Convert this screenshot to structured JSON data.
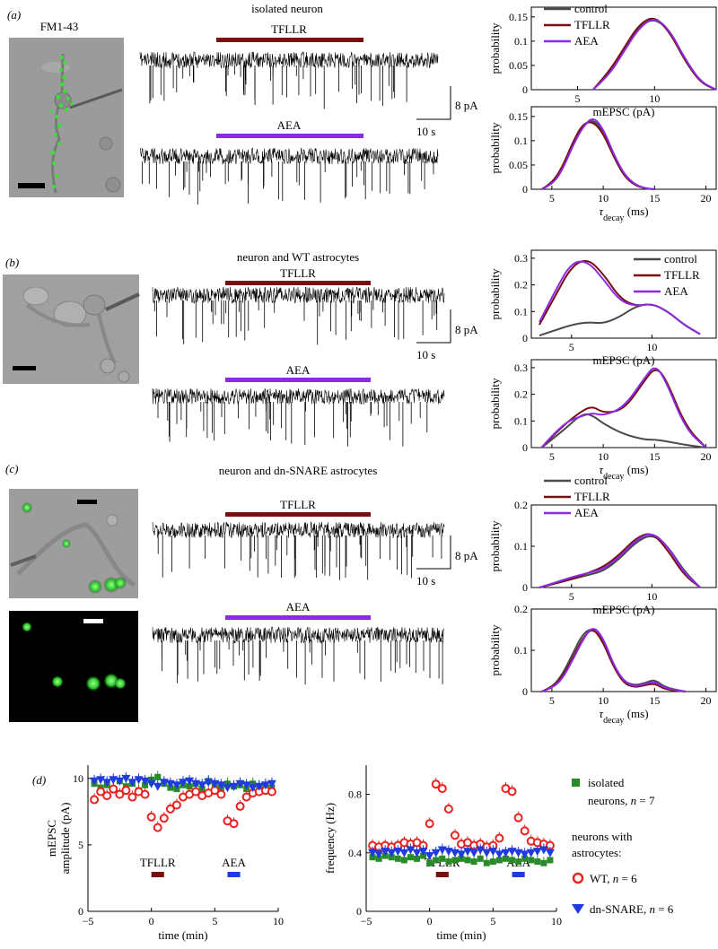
{
  "palette": {
    "control": "#4a4a4a",
    "tfllr": "#7a0f12",
    "aea": "#8a2be2",
    "wt": "#e8231f",
    "dn": "#1f3be0",
    "iso": "#2a8a2a",
    "trace": "#000000"
  },
  "panels": [
    {
      "label": "(a)",
      "title": "isolated neuron",
      "image_label": "FM1-43",
      "bars": [
        "TFLLR",
        "AEA"
      ],
      "scale": {
        "amp": "8 pA",
        "time": "10 s"
      },
      "legend": [
        "control",
        "TFLLR",
        "AEA"
      ],
      "amp_chart": {
        "type": "line",
        "xlabel": "mEPSC (pA)",
        "ylabel": "probability",
        "xlim": [
          2,
          14
        ],
        "ylim": [
          0,
          0.17
        ],
        "xticks": [
          5,
          10
        ],
        "yticks": [
          0,
          0.05,
          0.1,
          0.15
        ],
        "x": [
          6,
          7,
          8,
          9,
          10,
          11,
          12,
          13,
          14
        ],
        "series": [
          {
            "name": "control",
            "values": [
              0.0,
              0.03,
              0.08,
              0.13,
              0.148,
              0.12,
              0.06,
              0.015,
              0.0
            ]
          },
          {
            "name": "TFLLR",
            "values": [
              0.0,
              0.035,
              0.085,
              0.135,
              0.152,
              0.118,
              0.058,
              0.014,
              0.0
            ]
          },
          {
            "name": "AEA",
            "values": [
              0.0,
              0.028,
              0.078,
              0.128,
              0.15,
              0.122,
              0.062,
              0.016,
              0.0
            ]
          }
        ]
      },
      "tau_chart": {
        "type": "line",
        "xlabel_main": "τ",
        "xlabel_sub": "decay",
        "xlabel_unit": " (ms)",
        "ylabel": "probability",
        "xlim": [
          3,
          21
        ],
        "ylim": [
          0,
          0.17
        ],
        "xticks": [
          5,
          10,
          15,
          20
        ],
        "yticks": [
          0,
          0.05,
          0.1,
          0.15
        ],
        "x": [
          4,
          5,
          6,
          7,
          8,
          9,
          10,
          11,
          12,
          13,
          14,
          15
        ],
        "series": [
          {
            "name": "control",
            "values": [
              0.0,
              0.01,
              0.04,
              0.09,
              0.13,
              0.145,
              0.12,
              0.07,
              0.03,
              0.01,
              0.002,
              0.0
            ]
          },
          {
            "name": "TFLLR",
            "values": [
              0.0,
              0.012,
              0.045,
              0.095,
              0.135,
              0.14,
              0.115,
              0.068,
              0.028,
              0.009,
              0.002,
              0.0
            ]
          },
          {
            "name": "AEA",
            "values": [
              0.0,
              0.009,
              0.038,
              0.088,
              0.128,
              0.15,
              0.125,
              0.073,
              0.032,
              0.011,
              0.002,
              0.0
            ]
          }
        ]
      }
    },
    {
      "label": "(b)",
      "title": "neuron and WT astrocytes",
      "image_label": "",
      "bars": [
        "TFLLR",
        "AEA"
      ],
      "scale": {
        "amp": "8 pA",
        "time": "10 s"
      },
      "legend": [
        "control",
        "TFLLR",
        "AEA"
      ],
      "amp_chart": {
        "type": "line",
        "xlabel": "mEPSC (pA)",
        "ylabel": "probability",
        "xlim": [
          2.5,
          14
        ],
        "ylim": [
          0,
          0.33
        ],
        "xticks": [
          5,
          10
        ],
        "yticks": [
          0,
          0.1,
          0.2,
          0.3
        ],
        "x": [
          3,
          4,
          5,
          6,
          7,
          8,
          9,
          10,
          11,
          12,
          13
        ],
        "series": [
          {
            "name": "control",
            "values": [
              0.01,
              0.03,
              0.05,
              0.06,
              0.055,
              0.08,
              0.12,
              0.13,
              0.1,
              0.05,
              0.015
            ]
          },
          {
            "name": "TFLLR",
            "values": [
              0.05,
              0.16,
              0.27,
              0.3,
              0.24,
              0.15,
              0.12,
              0.13,
              0.1,
              0.05,
              0.015
            ]
          },
          {
            "name": "AEA",
            "values": [
              0.06,
              0.18,
              0.285,
              0.29,
              0.22,
              0.14,
              0.12,
              0.13,
              0.1,
              0.05,
              0.015
            ]
          }
        ]
      },
      "tau_chart": {
        "type": "line",
        "xlabel_main": "τ",
        "xlabel_sub": "decay",
        "xlabel_unit": " (ms)",
        "ylabel": "probability",
        "xlim": [
          3,
          21
        ],
        "ylim": [
          0,
          0.33
        ],
        "xticks": [
          5,
          10,
          15,
          20
        ],
        "yticks": [
          0,
          0.1,
          0.2,
          0.3
        ],
        "x": [
          4,
          6,
          8,
          9,
          10,
          12,
          14,
          15,
          16,
          18,
          20
        ],
        "series": [
          {
            "name": "control",
            "values": [
              0.0,
              0.06,
              0.13,
              0.12,
              0.09,
              0.05,
              0.03,
              0.03,
              0.025,
              0.01,
              0.0
            ]
          },
          {
            "name": "TFLLR",
            "values": [
              0.0,
              0.08,
              0.14,
              0.155,
              0.13,
              0.14,
              0.25,
              0.3,
              0.27,
              0.08,
              0.0
            ]
          },
          {
            "name": "AEA",
            "values": [
              0.0,
              0.09,
              0.12,
              0.13,
              0.12,
              0.15,
              0.26,
              0.31,
              0.26,
              0.07,
              0.0
            ]
          }
        ]
      }
    },
    {
      "label": "(c)",
      "title": "neuron and dn-SNARE  astrocytes",
      "image_label": "",
      "bars": [
        "TFLLR",
        "AEA"
      ],
      "scale": {
        "amp": "8 pA",
        "time": "10 s"
      },
      "legend": [
        "control",
        "TFLLR",
        "AEA"
      ],
      "amp_chart": {
        "type": "line",
        "xlabel": "mEPSC (pA)",
        "ylabel": "probability",
        "xlim": [
          2.5,
          14
        ],
        "ylim": [
          0,
          0.2
        ],
        "xticks": [
          5,
          10
        ],
        "yticks": [
          0,
          0.1,
          0.2
        ],
        "x": [
          3,
          4,
          5,
          6,
          7,
          8,
          9,
          10,
          11,
          12,
          13
        ],
        "series": [
          {
            "name": "control",
            "values": [
              0.0,
              0.01,
              0.02,
              0.03,
              0.04,
              0.07,
              0.11,
              0.13,
              0.1,
              0.04,
              0.0
            ]
          },
          {
            "name": "TFLLR",
            "values": [
              0.0,
              0.01,
              0.02,
              0.035,
              0.05,
              0.08,
              0.12,
              0.135,
              0.09,
              0.03,
              0.0
            ]
          },
          {
            "name": "AEA",
            "values": [
              0.0,
              0.012,
              0.025,
              0.035,
              0.045,
              0.075,
              0.115,
              0.135,
              0.1,
              0.035,
              0.0
            ]
          }
        ]
      },
      "tau_chart": {
        "type": "line",
        "xlabel_main": "τ",
        "xlabel_sub": "decay",
        "xlabel_unit": " (ms)",
        "ylabel": "probability",
        "xlim": [
          3,
          21
        ],
        "ylim": [
          0,
          0.2
        ],
        "xticks": [
          5,
          10,
          15,
          20
        ],
        "yticks": [
          0,
          0.1,
          0.2
        ],
        "x": [
          4,
          5,
          6,
          7,
          8,
          9,
          10,
          11,
          12,
          13,
          14,
          15,
          16,
          18
        ],
        "series": [
          {
            "name": "control",
            "values": [
              0.0,
              0.01,
              0.04,
              0.09,
              0.14,
              0.155,
              0.12,
              0.06,
              0.025,
              0.015,
              0.02,
              0.03,
              0.01,
              0.0
            ]
          },
          {
            "name": "TFLLR",
            "values": [
              0.0,
              0.01,
              0.035,
              0.08,
              0.13,
              0.155,
              0.12,
              0.06,
              0.02,
              0.01,
              0.015,
              0.02,
              0.005,
              0.0
            ]
          },
          {
            "name": "AEA",
            "values": [
              0.0,
              0.008,
              0.03,
              0.075,
              0.125,
              0.16,
              0.13,
              0.065,
              0.025,
              0.012,
              0.018,
              0.025,
              0.008,
              0.0
            ]
          }
        ]
      }
    }
  ],
  "panel_d": {
    "label": "(d)",
    "bar_labels": [
      "TFLLR",
      "AEA"
    ],
    "legend": {
      "iso": "isolated",
      "iso_n_prefix": "neurons, ",
      "n": "n",
      "iso_n": " = 7",
      "with": "neurons with",
      "with2": "astrocytes:",
      "wt": "WT, ",
      "wt_n": " = 6",
      "dn": "dn-SNARE, ",
      "dn_n": " = 6"
    },
    "amp_chart": {
      "type": "scatter",
      "xlabel": "time (min)",
      "ylabel": "mEPSC\namplitude (pA)",
      "xlim": [
        -5,
        10
      ],
      "ylim": [
        0,
        11
      ],
      "xticks": [
        -5,
        0,
        5,
        10
      ],
      "yticks": [
        0,
        5,
        10
      ],
      "x": [
        -4.5,
        -4,
        -3.5,
        -3,
        -2.5,
        -2,
        -1.5,
        -1,
        -0.5,
        0,
        0.5,
        1,
        1.5,
        2,
        2.5,
        3,
        3.5,
        4,
        4.5,
        5,
        5.5,
        6,
        6.5,
        7,
        7.5,
        8,
        8.5,
        9,
        9.5
      ],
      "series": [
        {
          "name": "isolated neurons",
          "values": [
            9.6,
            9.3,
            9.5,
            9.2,
            9.8,
            9.4,
            9.6,
            9.1,
            9.5,
            9.9,
            10.1,
            9.6,
            9.3,
            9.2,
            9.5,
            9.4,
            9.6,
            9.2,
            9.8,
            9.5,
            9.3,
            9.6,
            9.4,
            9.5,
            9.2,
            9.6,
            9.4,
            9.5,
            9.3
          ]
        },
        {
          "name": "WT",
          "values": [
            8.4,
            9.0,
            8.7,
            9.2,
            8.8,
            9.1,
            8.6,
            9.0,
            8.8,
            7.1,
            6.3,
            7.0,
            7.7,
            8.0,
            8.6,
            8.8,
            9.0,
            8.7,
            8.9,
            9.1,
            8.8,
            6.8,
            6.6,
            7.9,
            8.6,
            8.9,
            9.0,
            9.1,
            9.0
          ]
        },
        {
          "name": "dn-SNARE",
          "values": [
            9.8,
            9.9,
            9.7,
            9.9,
            9.8,
            10.0,
            9.7,
            9.9,
            9.8,
            9.6,
            9.4,
            9.7,
            9.6,
            9.5,
            9.7,
            9.8,
            9.6,
            9.5,
            9.7,
            9.6,
            9.5,
            9.3,
            9.4,
            9.6,
            9.5,
            9.3,
            9.4,
            9.5,
            9.6
          ]
        }
      ],
      "bars": [
        {
          "label": "TFLLR",
          "start": 0,
          "end": 1
        },
        {
          "label": "AEA",
          "start": 6,
          "end": 7
        }
      ]
    },
    "freq_chart": {
      "type": "scatter",
      "xlabel": "time (min)",
      "ylabel": "frequency (Hz)",
      "xlim": [
        -5,
        10
      ],
      "ylim": [
        0,
        1.0
      ],
      "xticks": [
        -5,
        0,
        5,
        10
      ],
      "yticks": [
        0,
        0.4,
        0.8
      ],
      "x": [
        -4.5,
        -4,
        -3.5,
        -3,
        -2.5,
        -2,
        -1.5,
        -1,
        -0.5,
        0,
        0.5,
        1,
        1.5,
        2,
        2.5,
        3,
        3.5,
        4,
        4.5,
        5,
        5.5,
        6,
        6.5,
        7,
        7.5,
        8,
        8.5,
        9,
        9.5
      ],
      "series": [
        {
          "name": "isolated neurons",
          "values": [
            0.37,
            0.36,
            0.38,
            0.37,
            0.36,
            0.35,
            0.37,
            0.36,
            0.38,
            0.33,
            0.35,
            0.36,
            0.34,
            0.35,
            0.36,
            0.35,
            0.34,
            0.36,
            0.33,
            0.34,
            0.35,
            0.36,
            0.35,
            0.34,
            0.36,
            0.35,
            0.34,
            0.33,
            0.35
          ]
        },
        {
          "name": "WT",
          "values": [
            0.45,
            0.44,
            0.45,
            0.44,
            0.45,
            0.47,
            0.46,
            0.47,
            0.45,
            0.6,
            0.87,
            0.84,
            0.7,
            0.52,
            0.46,
            0.47,
            0.45,
            0.46,
            0.44,
            0.45,
            0.5,
            0.84,
            0.82,
            0.64,
            0.55,
            0.48,
            0.47,
            0.46,
            0.45
          ]
        },
        {
          "name": "dn-SNARE",
          "values": [
            0.4,
            0.39,
            0.41,
            0.4,
            0.41,
            0.4,
            0.42,
            0.4,
            0.41,
            0.38,
            0.4,
            0.42,
            0.41,
            0.4,
            0.39,
            0.41,
            0.4,
            0.42,
            0.4,
            0.41,
            0.39,
            0.4,
            0.41,
            0.4,
            0.39,
            0.4,
            0.41,
            0.42,
            0.4
          ]
        }
      ],
      "bars": [
        {
          "label": "TFLLR",
          "start": 0.5,
          "end": 1.5
        },
        {
          "label": "AEA",
          "start": 6.5,
          "end": 7.5
        }
      ]
    }
  }
}
